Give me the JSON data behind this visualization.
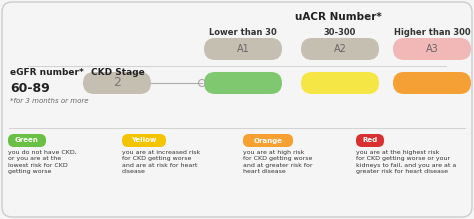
{
  "title": "uACR Number*",
  "col_headers": [
    "Lower than 30",
    "30-300",
    "Higher than 300"
  ],
  "row_label_egfr": "eGFR number*",
  "row_label_ckd": "CKD Stage",
  "egfr_value": "60-89",
  "ckd_stage": "2",
  "footnote": "*for 3 months or more",
  "a_labels": [
    "A1",
    "A2",
    "A3"
  ],
  "a_colors": [
    "#c5bfb2",
    "#c5bfb2",
    "#f2b8b8"
  ],
  "cell_colors": [
    "#80c870",
    "#f5e645",
    "#f5a035"
  ],
  "ckd_stage_color": "#c5bfb2",
  "legend": [
    {
      "label": "Green",
      "color": "#6abf45",
      "text": "you do not have CKD,\nor you are at the\nlowest risk for CKD\ngetting worse"
    },
    {
      "label": "Yellow",
      "color": "#f5c400",
      "text": "you are at increased risk\nfor CKD getting worse\nand are at risk for heart\ndisease"
    },
    {
      "label": "Orange",
      "color": "#f5a030",
      "text": "you are at high risk\nfor CKD getting worse\nand at greater risk for\nheart disease"
    },
    {
      "label": "Red",
      "color": "#d93030",
      "text": "you are at the highest risk\nfor CKD getting worse or your\nkidneys to fail, and you are at a\ngreater risk for heart disease"
    }
  ],
  "bg_color": "#f5f5f5",
  "border_color": "#cccccc",
  "separator_color": "#cccccc"
}
